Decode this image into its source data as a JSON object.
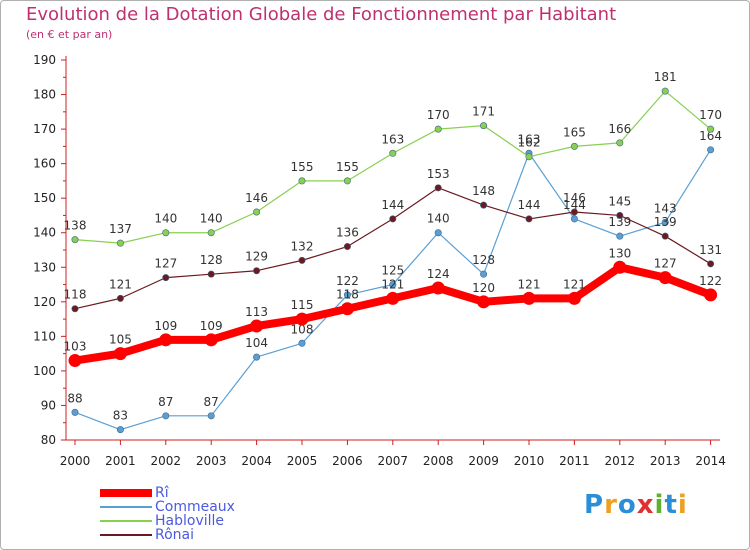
{
  "title": "Evolution de la Dotation Globale de Fonctionnement par Habitant",
  "subtitle": "(en € et par an)",
  "logo": {
    "text": "Proxiti",
    "letters": [
      {
        "ch": "P",
        "color": "#2a8fd6"
      },
      {
        "ch": "r",
        "color": "#f0a020"
      },
      {
        "ch": "o",
        "color": "#2a8fd6"
      },
      {
        "ch": "x",
        "color": "#e03030"
      },
      {
        "ch": "i",
        "color": "#60b030"
      },
      {
        "ch": "t",
        "color": "#2a8fd6"
      },
      {
        "ch": "i",
        "color": "#f0a020"
      }
    ]
  },
  "chart_data": {
    "type": "line",
    "title": "Evolution de la Dotation Globale de Fonctionnement par Habitant",
    "subtitle": "(en € et par an)",
    "xlabel": "",
    "ylabel": "",
    "x": [
      "2000",
      "2001",
      "2002",
      "2003",
      "2004",
      "2005",
      "2006",
      "2007",
      "2008",
      "2009",
      "2010",
      "2011",
      "2012",
      "2013",
      "2014"
    ],
    "ylim": [
      80,
      190
    ],
    "yticks": [
      80,
      90,
      100,
      110,
      120,
      130,
      140,
      150,
      160,
      170,
      180,
      190
    ],
    "grid": false,
    "legend_position": "bottom-left",
    "series": [
      {
        "name": "Rî",
        "color": "#ff0000",
        "emphasis": true,
        "values": [
          103,
          105,
          109,
          109,
          113,
          115,
          118,
          121,
          124,
          120,
          121,
          121,
          130,
          127,
          122
        ]
      },
      {
        "name": "Commeaux",
        "color": "#5a9fd4",
        "emphasis": false,
        "values": [
          88,
          83,
          87,
          87,
          104,
          108,
          122,
          125,
          140,
          128,
          163,
          144,
          139,
          143,
          164
        ]
      },
      {
        "name": "Habloville",
        "color": "#88d050",
        "emphasis": false,
        "values": [
          138,
          137,
          140,
          140,
          146,
          155,
          155,
          163,
          170,
          171,
          162,
          165,
          166,
          181,
          170
        ]
      },
      {
        "name": "Rônai",
        "color": "#6b1a20",
        "emphasis": false,
        "values": [
          118,
          121,
          127,
          128,
          129,
          132,
          136,
          144,
          153,
          148,
          144,
          146,
          145,
          139,
          131
        ]
      }
    ]
  }
}
